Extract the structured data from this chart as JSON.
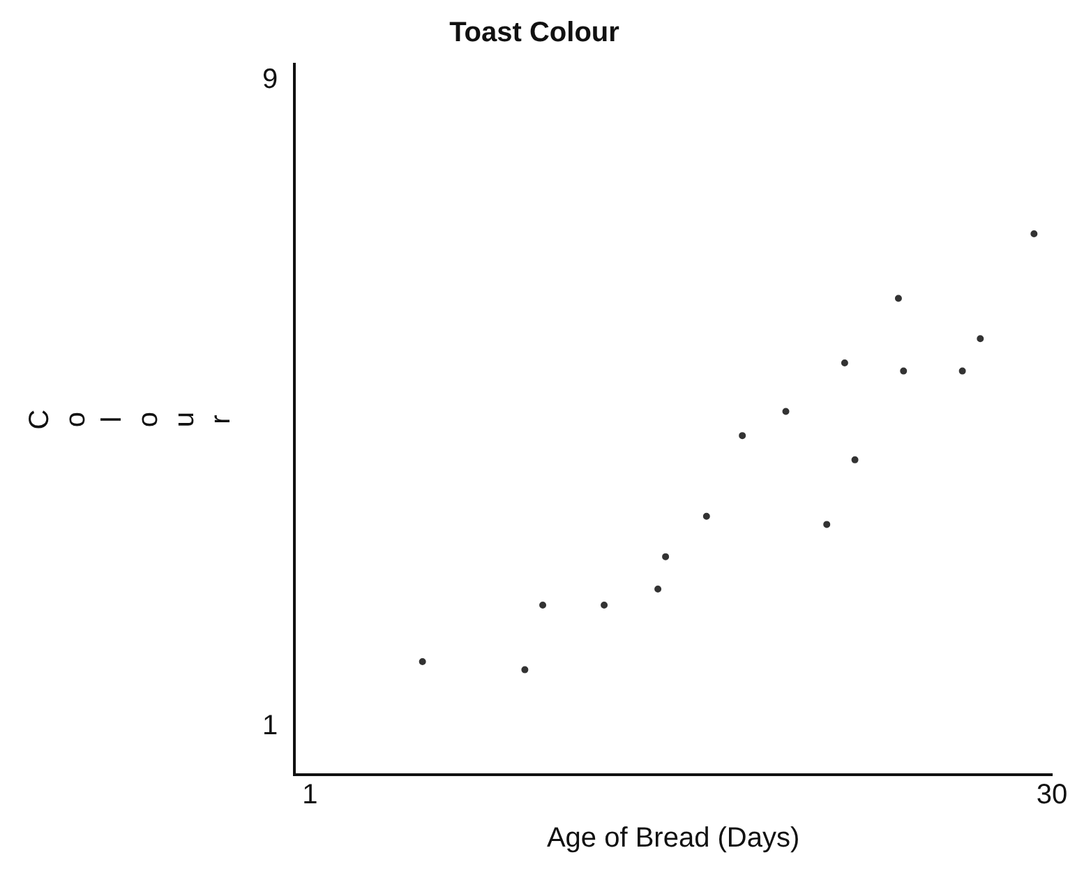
{
  "chart_data": {
    "type": "scatter",
    "title": "Toast Colour",
    "xlabel": "Age of Bread (Days)",
    "ylabel": "Colour",
    "x": [
      5.4,
      9.4,
      10.1,
      12.5,
      14.6,
      14.9,
      16.5,
      17.9,
      19.6,
      21.2,
      21.9,
      22.3,
      24.0,
      24.2,
      26.5,
      27.2,
      29.3
    ],
    "values": [
      1.8,
      1.7,
      2.5,
      2.5,
      2.7,
      3.1,
      3.6,
      4.6,
      4.9,
      3.5,
      5.5,
      4.3,
      6.3,
      5.4,
      5.4,
      5.8,
      7.1
    ],
    "color": "#333333",
    "marker": "circle",
    "xlim": [
      0.4,
      30
    ],
    "ylim": [
      0.4,
      9.2
    ],
    "xticks": [
      1,
      30
    ],
    "yticks": [
      1,
      9
    ],
    "grid": false,
    "legend": false
  }
}
